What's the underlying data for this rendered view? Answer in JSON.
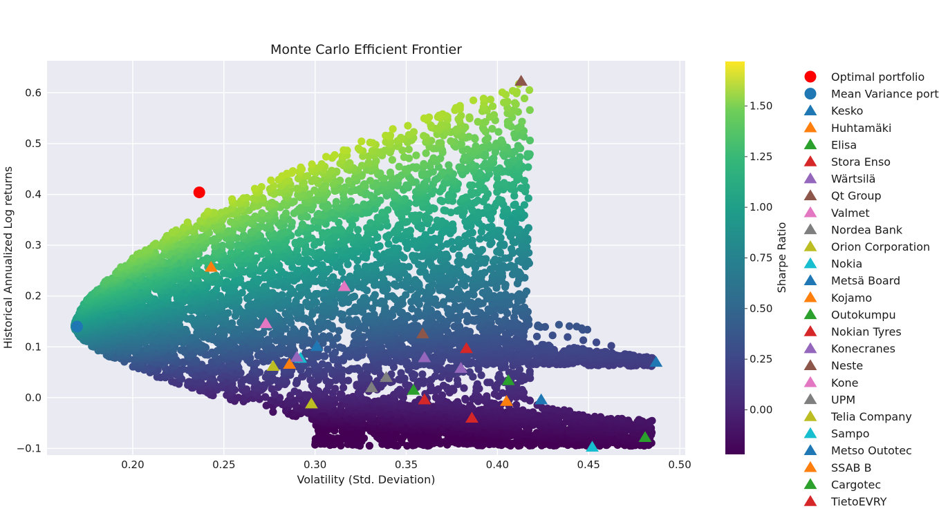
{
  "chart_data": {
    "type": "scatter",
    "title": "Monte Carlo Efficient Frontier",
    "xlabel": "Volatility (Std. Deviation)",
    "ylabel": "Historical Annualized Log returns",
    "xlim": [
      0.153,
      0.503
    ],
    "ylim": [
      -0.113,
      0.663
    ],
    "xticks": [
      0.2,
      0.25,
      0.3,
      0.35,
      0.4,
      0.45,
      0.5
    ],
    "xtick_labels": [
      "0.20",
      "0.25",
      "0.30",
      "0.35",
      "0.40",
      "0.45",
      "0.50"
    ],
    "yticks": [
      -0.1,
      0.0,
      0.1,
      0.2,
      0.3,
      0.4,
      0.5,
      0.6
    ],
    "ytick_labels": [
      "−0.1",
      "0.0",
      "0.1",
      "0.2",
      "0.3",
      "0.4",
      "0.5",
      "0.6"
    ],
    "grid": true,
    "background": "#eaeaf2",
    "colorbar": {
      "label": "Sharpe Ratio",
      "colormap": "viridis",
      "range": [
        -0.22,
        1.72
      ],
      "ticks": [
        0.0,
        0.25,
        0.5,
        0.75,
        1.0,
        1.25,
        1.5
      ],
      "tick_labels": [
        "0.00",
        "0.25",
        "0.50",
        "0.75",
        "1.00",
        "1.25",
        "1.50"
      ]
    },
    "legend_position": "right, outside plot",
    "optimal_portfolio": {
      "name": "Optimal portfolio",
      "x": 0.2365,
      "y": 0.404,
      "color": "#ff0000",
      "marker": "circle"
    },
    "mean_variance_portfolio": {
      "name": "Mean Variance portfolio",
      "x": 0.1695,
      "y": 0.14,
      "color": "#1f77b4",
      "marker": "circle"
    },
    "assets": [
      {
        "name": "Kesko",
        "x": 0.487,
        "y": 0.07,
        "color": "#1f77b4"
      },
      {
        "name": "Huhtamäki",
        "x": 0.243,
        "y": 0.257,
        "color": "#ff7f0e"
      },
      {
        "name": "Elisa",
        "x": 0.406,
        "y": 0.034,
        "color": "#2ca02c"
      },
      {
        "name": "Stora Enso",
        "x": 0.383,
        "y": 0.097,
        "color": "#d62728"
      },
      {
        "name": "Wärtsilä",
        "x": 0.38,
        "y": 0.058,
        "color": "#9467bd"
      },
      {
        "name": "Qt Group",
        "x": 0.413,
        "y": 0.623,
        "color": "#8c564b"
      },
      {
        "name": "Valmet",
        "x": 0.316,
        "y": 0.219,
        "color": "#e377c2"
      },
      {
        "name": "Nordea Bank",
        "x": 0.331,
        "y": 0.02,
        "color": "#7f7f7f"
      },
      {
        "name": "Orion Corporation",
        "x": 0.277,
        "y": 0.062,
        "color": "#bcbd22"
      },
      {
        "name": "Nokia",
        "x": 0.452,
        "y": -0.097,
        "color": "#17becf"
      },
      {
        "name": "Metsä Board",
        "x": 0.301,
        "y": 0.101,
        "color": "#1f77b4"
      },
      {
        "name": "Kojamo",
        "x": 0.286,
        "y": 0.066,
        "color": "#ff7f0e"
      },
      {
        "name": "Outokumpu",
        "x": 0.354,
        "y": 0.015,
        "color": "#2ca02c"
      },
      {
        "name": "Nokian Tyres",
        "x": 0.386,
        "y": -0.04,
        "color": "#d62728"
      },
      {
        "name": "Konecranes",
        "x": 0.36,
        "y": 0.079,
        "color": "#9467bd"
      },
      {
        "name": "Neste",
        "x": 0.359,
        "y": 0.126,
        "color": "#8c564b"
      },
      {
        "name": "Kone",
        "x": 0.273,
        "y": 0.146,
        "color": "#e377c2"
      },
      {
        "name": "UPM",
        "x": 0.339,
        "y": 0.04,
        "color": "#7f7f7f"
      },
      {
        "name": "Telia Company",
        "x": 0.298,
        "y": -0.012,
        "color": "#bcbd22"
      },
      {
        "name": "Sampo",
        "x": 0.292,
        "y": 0.078,
        "color": "#17becf"
      },
      {
        "name": "Metso Outotec",
        "x": 0.424,
        "y": -0.004,
        "color": "#1f77b4"
      },
      {
        "name": "SSAB B",
        "x": 0.405,
        "y": -0.007,
        "color": "#ff7f0e"
      },
      {
        "name": "Cargotec",
        "x": 0.481,
        "y": -0.078,
        "color": "#2ca02c"
      },
      {
        "name": "TietoEVRY",
        "x": 0.36,
        "y": -0.004,
        "color": "#d62728"
      },
      {
        "name": "",
        "x": 0.29,
        "y": 0.08,
        "color": "#9467bd"
      }
    ],
    "legend": [
      {
        "label": "Optimal portfolio",
        "marker": "circle",
        "color": "#ff0000"
      },
      {
        "label": "Mean Variance portfo",
        "marker": "circle",
        "color": "#1f77b4"
      },
      {
        "label": "Kesko",
        "marker": "triangle",
        "color": "#1f77b4"
      },
      {
        "label": "Huhtamäki",
        "marker": "triangle",
        "color": "#ff7f0e"
      },
      {
        "label": "Elisa",
        "marker": "triangle",
        "color": "#2ca02c"
      },
      {
        "label": "Stora Enso",
        "marker": "triangle",
        "color": "#d62728"
      },
      {
        "label": "Wärtsilä",
        "marker": "triangle",
        "color": "#9467bd"
      },
      {
        "label": "Qt Group",
        "marker": "triangle",
        "color": "#8c564b"
      },
      {
        "label": "Valmet",
        "marker": "triangle",
        "color": "#e377c2"
      },
      {
        "label": "Nordea Bank",
        "marker": "triangle",
        "color": "#7f7f7f"
      },
      {
        "label": "Orion Corporation",
        "marker": "triangle",
        "color": "#bcbd22"
      },
      {
        "label": "Nokia",
        "marker": "triangle",
        "color": "#17becf"
      },
      {
        "label": "Metsä Board",
        "marker": "triangle",
        "color": "#1f77b4"
      },
      {
        "label": "Kojamo",
        "marker": "triangle",
        "color": "#ff7f0e"
      },
      {
        "label": "Outokumpu",
        "marker": "triangle",
        "color": "#2ca02c"
      },
      {
        "label": "Nokian Tyres",
        "marker": "triangle",
        "color": "#d62728"
      },
      {
        "label": "Konecranes",
        "marker": "triangle",
        "color": "#9467bd"
      },
      {
        "label": "Neste",
        "marker": "triangle",
        "color": "#8c564b"
      },
      {
        "label": "Kone",
        "marker": "triangle",
        "color": "#e377c2"
      },
      {
        "label": "UPM",
        "marker": "triangle",
        "color": "#7f7f7f"
      },
      {
        "label": "Telia Company",
        "marker": "triangle",
        "color": "#bcbd22"
      },
      {
        "label": "Sampo",
        "marker": "triangle",
        "color": "#17becf"
      },
      {
        "label": "Metso Outotec",
        "marker": "triangle",
        "color": "#1f77b4"
      },
      {
        "label": "SSAB B",
        "marker": "triangle",
        "color": "#ff7f0e"
      },
      {
        "label": "Cargotec",
        "marker": "triangle",
        "color": "#2ca02c"
      },
      {
        "label": "TietoEVRY",
        "marker": "triangle",
        "color": "#d62728"
      }
    ]
  }
}
